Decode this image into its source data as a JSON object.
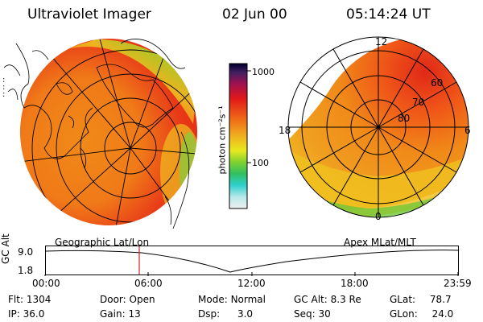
{
  "header": {
    "instrument": "Ultraviolet Imager",
    "date": "02 Jun 00",
    "time": "05:14:24 UT"
  },
  "colorbar": {
    "unit_label": "photon cm⁻²s⁻¹",
    "ticks": [
      "1000",
      "100"
    ]
  },
  "left_panel": {
    "projection_label": "Geographic Lat/Lon"
  },
  "right_panel": {
    "projection_label": "Apex MLat/MLT",
    "mlt_labels": {
      "top": "12",
      "left": "18",
      "right": "6",
      "bottom": "0"
    },
    "mlat_labels": [
      "60",
      "70",
      "80"
    ]
  },
  "altitude_plot": {
    "ylabel": "GC Alt",
    "y_ticks": [
      "9.0",
      "1.8"
    ],
    "x_ticks": [
      "00:00",
      "06:00",
      "12:00",
      "18:00",
      "23:59"
    ],
    "cursor_time": "05:14:24"
  },
  "status": {
    "flt": {
      "label": "Flt:",
      "value": "1304"
    },
    "ip": {
      "label": "IP:",
      "value": "36.0"
    },
    "door": {
      "label": "Door:",
      "value": "Open"
    },
    "gain": {
      "label": "Gain:",
      "value": "13"
    },
    "mode": {
      "label": "Mode:",
      "value": "Normal"
    },
    "dsp": {
      "label": "Dsp:",
      "value": "3.0"
    },
    "gc_alt": {
      "label": "GC Alt:",
      "value": "8.3 Re"
    },
    "seq": {
      "label": "Seq:",
      "value": "30"
    },
    "glat": {
      "label": "GLat:",
      "value": "78.7"
    },
    "glon": {
      "label": "GLon:",
      "value": "24.0"
    }
  },
  "colors": {
    "auroral_orange": "#f08a18",
    "auroral_red": "#e03018",
    "auroral_yellow": "#f0d020",
    "auroral_green": "#60c830",
    "cursor_red": "#d02020"
  }
}
